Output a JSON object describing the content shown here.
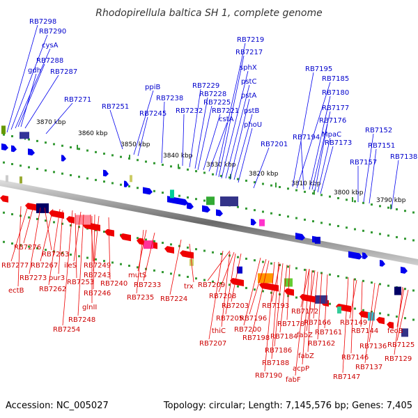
{
  "title": "Rhodopirellula baltica SH 1, complete genome",
  "footer": {
    "accession": "Accession: NC_005027",
    "summary": "Topology: circular; Length: 7,145,576 bp; Genes: 7,405"
  },
  "ticks": [
    "3870 kbp",
    "3860 kbp",
    "3850 kbp",
    "3840 kbp",
    "3830 kbp",
    "3820 kbp",
    "3810 kbp",
    "3800 kbp",
    "3790 kbp"
  ],
  "forward_labels": [
    "RB7298",
    "RB7290",
    "cysA",
    "RB7288",
    "gdh",
    "RB7287",
    "RB7271",
    "RB7251",
    "ppiB",
    "RB7245",
    "RB7238",
    "RB7232",
    "RB7229",
    "RB7228",
    "RB7225",
    "RB7221",
    "cstA",
    "RB7219",
    "RB7217",
    "sphX",
    "pstC",
    "pstA",
    "pstB",
    "phoU",
    "RB7201",
    "RB7195",
    "RB7185",
    "RB7194",
    "RB7180",
    "RB7177",
    "RB7176",
    "MpaC",
    "RB7173",
    "RB7157",
    "RB7152",
    "RB7151",
    "RB7138"
  ],
  "reverse_labels": [
    "RB7276",
    "RB7263",
    "RB7277",
    "RB7267",
    "ileS",
    "RB7273",
    "pur3",
    "ectB",
    "RB7262",
    "RB7249",
    "RB7253",
    "RB7243",
    "RB7240",
    "RB7246",
    "glnII",
    "RB7248",
    "RB7254",
    "mutS",
    "RB7233",
    "RB7235",
    "RB7224",
    "trx",
    "RB7209",
    "RB7208",
    "RB7203",
    "RB7205",
    "thiC",
    "RB7207",
    "RB7200",
    "RB7196",
    "RB7198",
    "RB7193",
    "RB7178",
    "RB7184",
    "RB7186",
    "RB7188",
    "RB7190",
    "RB7172",
    "RB7166",
    "fabZ",
    "RB7162",
    "fabZ",
    "acpP",
    "fabF",
    "RB7161",
    "RB7149",
    "RB7144",
    "RB7146",
    "RB7147",
    "RB7136",
    "RB7137",
    "feoB",
    "RB7125",
    "RB7129"
  ],
  "colors": {
    "forward": "#0000ee",
    "reverse": "#ee0000",
    "backbone": "#777777",
    "tick": "#339933"
  }
}
